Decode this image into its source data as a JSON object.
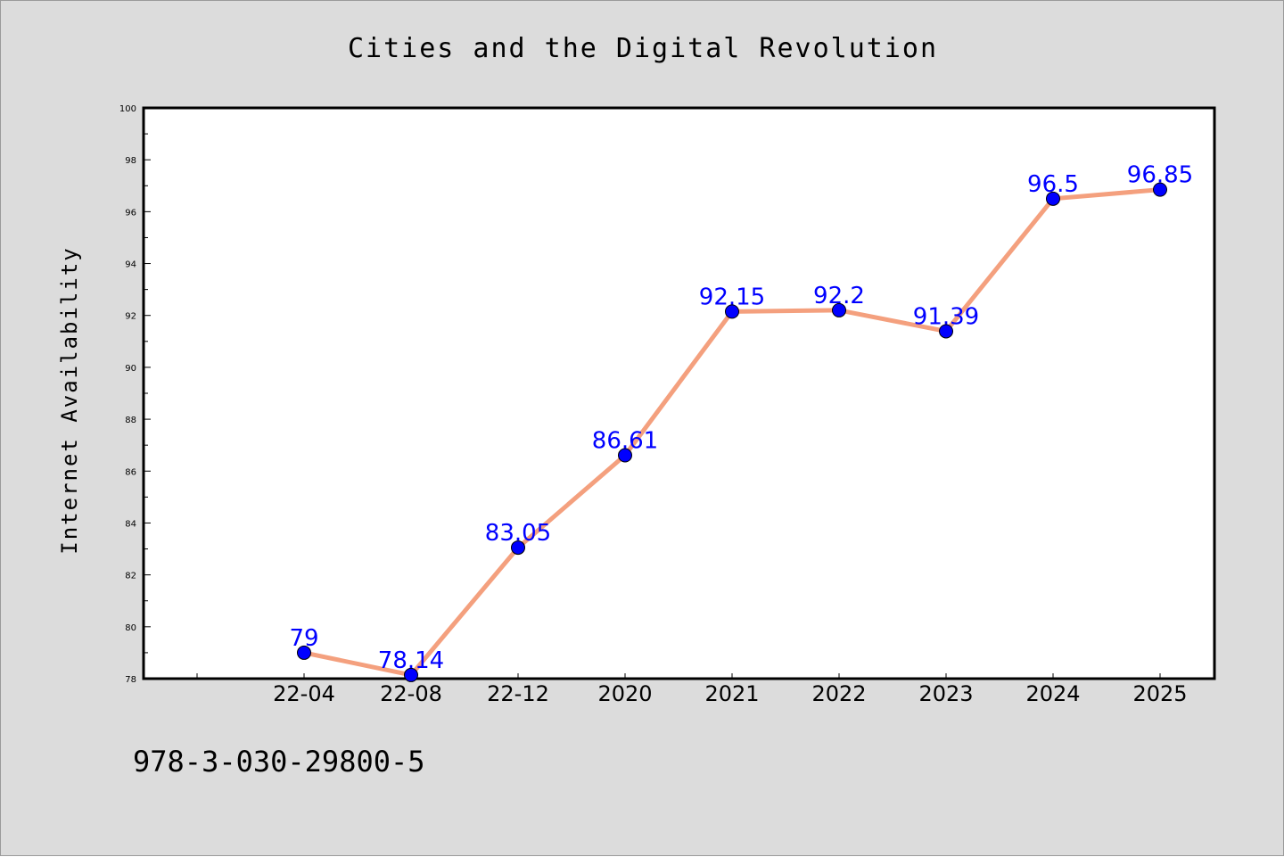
{
  "chart_data": {
    "type": "line",
    "title": "Cities and the Digital Revolution",
    "ylabel": "Internet Availability",
    "xlabel": "",
    "categories": [
      "22-04",
      "22-08",
      "22-12",
      "2020",
      "2021",
      "2022",
      "2023",
      "2024",
      "2025"
    ],
    "values": [
      79,
      78.14,
      83.05,
      86.61,
      92.15,
      92.2,
      91.39,
      96.5,
      96.85
    ],
    "data_labels": [
      "79",
      "78.14",
      "83.05",
      "86.61",
      "92.15",
      "92.2",
      "91.39",
      "96.5",
      "96.85"
    ],
    "ylim": [
      78,
      100
    ],
    "yticks": [
      78,
      80,
      82,
      84,
      86,
      88,
      90,
      92,
      94,
      96,
      98,
      100
    ],
    "grid": false,
    "line_color": "#f4a07e",
    "marker_color": "#0000ff",
    "label_color": "#0000ff"
  },
  "footer": {
    "code": "978-3-030-29800-5"
  },
  "colors": {
    "background": "#dcdcdc",
    "plot_background": "#ffffff"
  }
}
